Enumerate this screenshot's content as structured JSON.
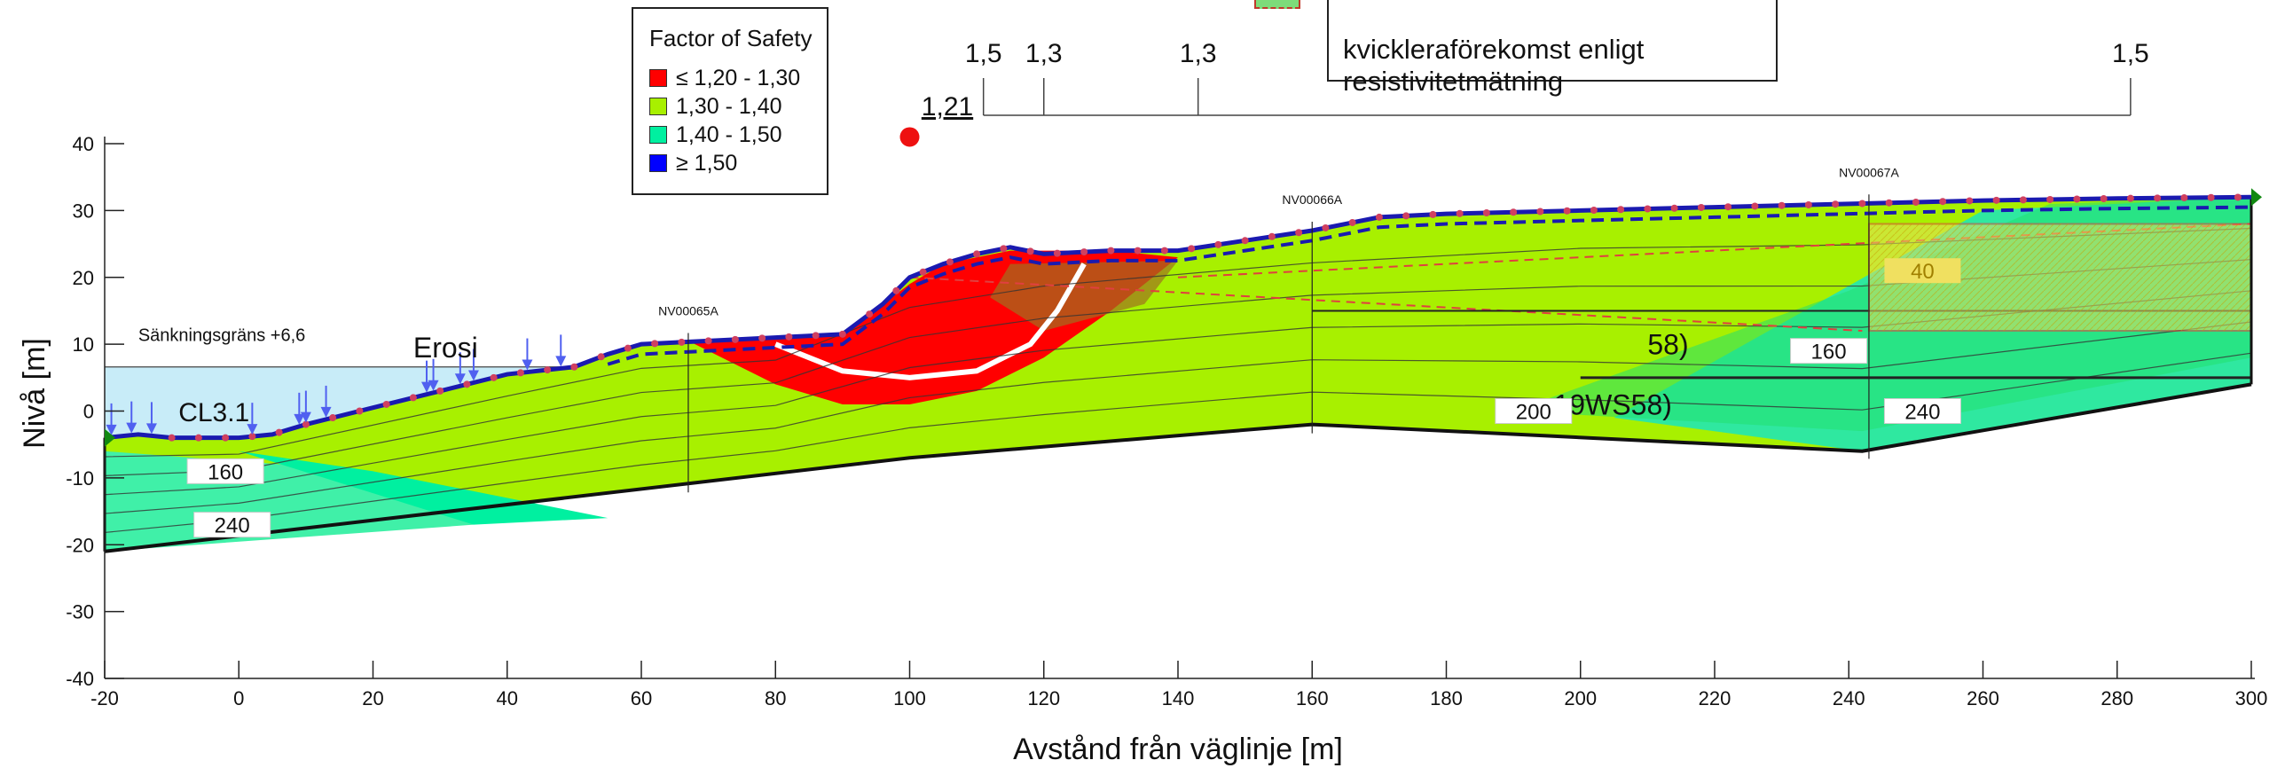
{
  "chart_data": {
    "type": "area",
    "title": "",
    "xlabel": "Avstånd från väglinje [m]",
    "ylabel": "Nivå [m]",
    "xlim": [
      -20,
      300
    ],
    "ylim": [
      -40,
      40
    ],
    "x_ticks": [
      -20,
      0,
      20,
      40,
      60,
      80,
      100,
      120,
      140,
      160,
      180,
      200,
      220,
      240,
      260,
      280,
      300
    ],
    "y_ticks": [
      -40,
      -30,
      -20,
      -10,
      0,
      10,
      20,
      30,
      40
    ],
    "x_tick_labels": [
      "-20",
      "0",
      "20",
      "40",
      "60",
      "80",
      "100",
      "120",
      "140",
      "160",
      "180",
      "200",
      "220",
      "240",
      "260",
      "280",
      "300"
    ],
    "y_tick_labels": [
      "-40",
      "-30",
      "-20",
      "-10",
      "0",
      "10",
      "20",
      "30",
      "40"
    ],
    "grid": false,
    "legend": {
      "title": "Factor of Safety",
      "placement": "top-left",
      "entries": [
        {
          "label": "≤ 1,20 - 1,30",
          "color": "#ff0000"
        },
        {
          "label": "1,30 - 1,40",
          "color": "#a8f000"
        },
        {
          "label": "1,40 - 1,50",
          "color": "#00f0a0"
        },
        {
          "label": "≥ 1,50",
          "color": "#0000ff"
        }
      ]
    },
    "note_lines": [
      "kvickleraförekomst enligt",
      "resistivitetmätning"
    ],
    "factor_labels": [
      {
        "text": "1,5",
        "x": 111
      },
      {
        "text": "1,3",
        "x": 120
      },
      {
        "text": "1,3",
        "x": 143
      },
      {
        "text": "1,5",
        "x": 282
      }
    ],
    "critical_factor": {
      "text": "1,21",
      "x": 100,
      "y": 41
    },
    "annotations": {
      "sankningsgrans": "Sänkningsgräns +6,6",
      "erosion": "Erosi",
      "cl_partial": "CL3.1",
      "ws_a": "58)",
      "ws_b": "19WS58)"
    },
    "boreholes": [
      {
        "name": "NV00065A",
        "x": 67
      },
      {
        "name": "NV00066A",
        "x": 160
      },
      {
        "name": "NV00067A",
        "x": 243
      }
    ],
    "boxed_values": [
      {
        "text": "160",
        "x": -2,
        "y": -9
      },
      {
        "text": "240",
        "x": -1,
        "y": -17
      },
      {
        "text": "200",
        "x": 193,
        "y": 0
      },
      {
        "text": "240",
        "x": 251,
        "y": 0
      },
      {
        "text": "160",
        "x": 237,
        "y": 9
      },
      {
        "text": "40",
        "x": 251,
        "y": 21
      }
    ],
    "water_level": 6.6,
    "ground_surface": {
      "x": [
        -20,
        -15,
        -10,
        0,
        5,
        10,
        20,
        30,
        40,
        50,
        55,
        60,
        70,
        80,
        90,
        96,
        100,
        105,
        110,
        115,
        120,
        130,
        140,
        150,
        160,
        170,
        180,
        200,
        220,
        240,
        260,
        280,
        300
      ],
      "y": [
        -4,
        -3.5,
        -4,
        -4,
        -3.5,
        -2,
        0.5,
        3,
        5.5,
        6.6,
        8.5,
        10,
        10.5,
        11,
        11.5,
        16,
        20,
        22,
        23.5,
        24.5,
        23.5,
        24,
        24,
        25.5,
        27,
        29,
        29.5,
        30,
        30.5,
        31,
        31.5,
        31.8,
        32
      ]
    },
    "bottom_boundary": {
      "x": [
        -20,
        100,
        160,
        242,
        300
      ],
      "y": [
        -21,
        -7,
        -2,
        -6,
        4
      ]
    },
    "critical_slip_surface": {
      "x": [
        80,
        90,
        100,
        110,
        118,
        122,
        126
      ],
      "y": [
        10,
        6,
        5,
        6,
        10,
        15,
        22
      ]
    }
  }
}
